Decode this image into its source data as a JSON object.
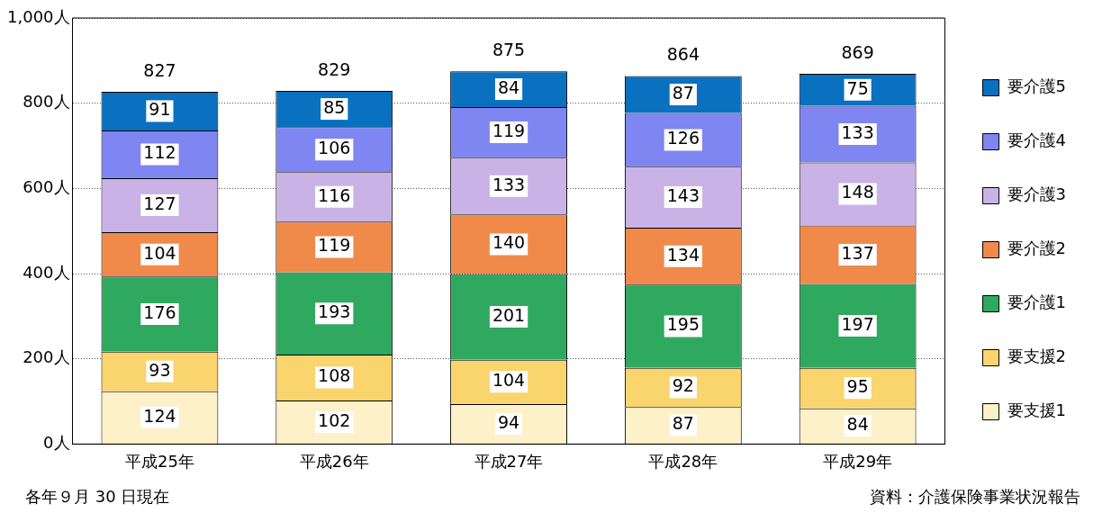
{
  "chart_data": {
    "type": "bar",
    "stacked": true,
    "categories": [
      "平成25年",
      "平成26年",
      "平成27年",
      "平成28年",
      "平成29年"
    ],
    "series": [
      {
        "name": "要支援1",
        "color": "#fdf1c9",
        "values": [
          124,
          102,
          94,
          87,
          84
        ]
      },
      {
        "name": "要支援2",
        "color": "#fad46c",
        "values": [
          93,
          108,
          104,
          92,
          95
        ]
      },
      {
        "name": "要介護1",
        "color": "#2fa95f",
        "values": [
          176,
          193,
          201,
          195,
          197
        ]
      },
      {
        "name": "要介護2",
        "color": "#f08a4b",
        "values": [
          104,
          119,
          140,
          134,
          137
        ]
      },
      {
        "name": "要介護3",
        "color": "#c9b3e6",
        "values": [
          127,
          116,
          133,
          143,
          148
        ]
      },
      {
        "name": "要介護4",
        "color": "#7f86f2",
        "values": [
          112,
          106,
          119,
          126,
          133
        ]
      },
      {
        "name": "要介護5",
        "color": "#0a70c0",
        "values": [
          91,
          85,
          84,
          87,
          75
        ]
      }
    ],
    "data_labels": true,
    "totals": [
      "827",
      "829",
      "875",
      "864",
      "869"
    ],
    "ylim": [
      0,
      1000
    ],
    "yticks": [
      {
        "value": 0,
        "label": "0人"
      },
      {
        "value": 200,
        "label": "200人"
      },
      {
        "value": 400,
        "label": "400人"
      },
      {
        "value": 600,
        "label": "600人"
      },
      {
        "value": 800,
        "label": "800人"
      },
      {
        "value": 1000,
        "label": "1,000人"
      }
    ],
    "grid": "y",
    "legend": "right",
    "annotations": [
      "各年９月 30 日現在",
      "資料：介護保険事業状況報告"
    ]
  }
}
